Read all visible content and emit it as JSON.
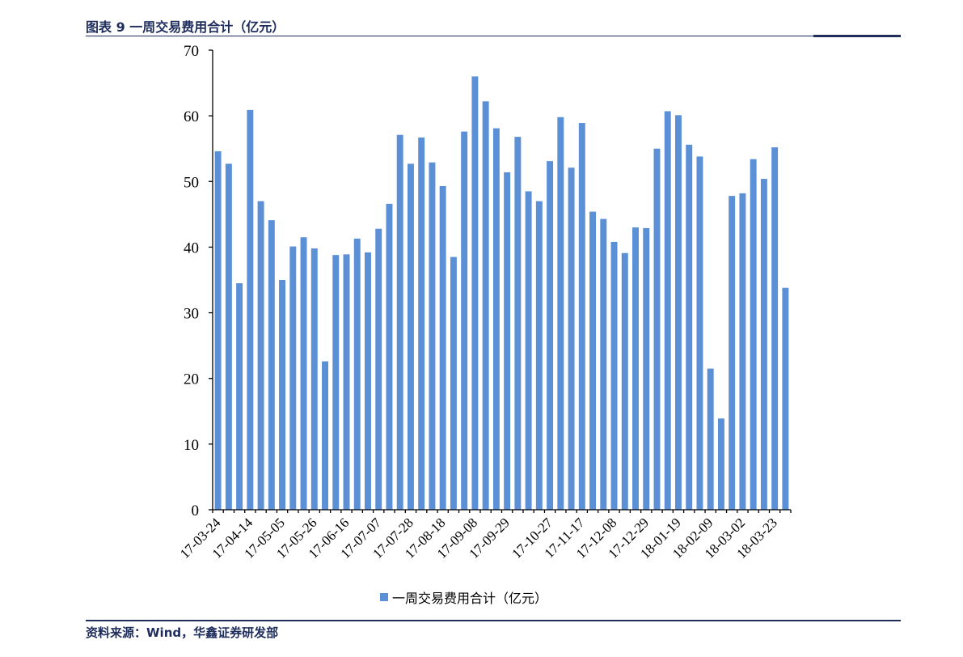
{
  "header": {
    "title": "图表 9 一周交易费用合计（亿元）"
  },
  "footer": {
    "source": "资料来源：Wind，华鑫证券研发部"
  },
  "colors": {
    "bar": "#5b8fd6",
    "accent": "#1f2d5c",
    "axis": "#000000"
  },
  "chart_data": {
    "type": "bar",
    "title": "",
    "xlabel": "",
    "ylabel": "",
    "ylim": [
      0,
      70
    ],
    "yticks": [
      0,
      10,
      20,
      30,
      40,
      50,
      60,
      70
    ],
    "grid": false,
    "legend_position": "bottom",
    "categories": [
      "17-03-24",
      "17-03-31",
      "17-04-07",
      "17-04-14",
      "17-04-21",
      "17-04-28",
      "17-05-05",
      "17-05-12",
      "17-05-19",
      "17-05-26",
      "17-06-02",
      "17-06-09",
      "17-06-16",
      "17-06-23",
      "17-06-30",
      "17-07-07",
      "17-07-14",
      "17-07-21",
      "17-07-28",
      "17-08-04",
      "17-08-11",
      "17-08-18",
      "17-08-25",
      "17-09-01",
      "17-09-08",
      "17-09-15",
      "17-09-22",
      "17-09-29",
      "17-10-06",
      "17-10-13",
      "17-10-20",
      "17-10-27",
      "17-11-03",
      "17-11-10",
      "17-11-17",
      "17-11-24",
      "17-12-01",
      "17-12-08",
      "17-12-15",
      "17-12-22",
      "17-12-29",
      "18-01-05",
      "18-01-12",
      "18-01-19",
      "18-01-26",
      "18-02-02",
      "18-02-09",
      "18-02-16",
      "18-02-23",
      "18-03-02",
      "18-03-09",
      "18-03-16",
      "18-03-23",
      "18-03-30"
    ],
    "x_tick_labels_shown": [
      "17-03-24",
      "17-04-14",
      "17-05-05",
      "17-05-26",
      "17-06-16",
      "17-07-07",
      "17-07-28",
      "17-08-18",
      "17-09-08",
      "17-09-29",
      "17-10-27",
      "17-11-17",
      "17-12-08",
      "17-12-29",
      "18-01-19",
      "18-02-09",
      "18-03-02",
      "18-03-23"
    ],
    "series": [
      {
        "name": "一周交易费用合计（亿元）",
        "values": [
          54.6,
          52.7,
          34.5,
          60.9,
          47.0,
          44.1,
          35.0,
          40.1,
          41.5,
          39.8,
          22.6,
          38.8,
          38.9,
          41.3,
          39.2,
          42.8,
          46.6,
          57.1,
          52.7,
          56.7,
          52.9,
          49.3,
          38.5,
          57.6,
          66.0,
          62.2,
          58.1,
          51.4,
          56.8,
          48.5,
          47.0,
          53.1,
          59.8,
          52.1,
          58.9,
          45.4,
          44.3,
          40.8,
          39.1,
          43.0,
          42.9,
          55.0,
          60.7,
          60.1,
          55.6,
          53.8,
          21.5,
          13.9,
          47.8,
          48.2,
          53.4,
          50.4,
          55.2,
          33.8
        ]
      }
    ]
  }
}
